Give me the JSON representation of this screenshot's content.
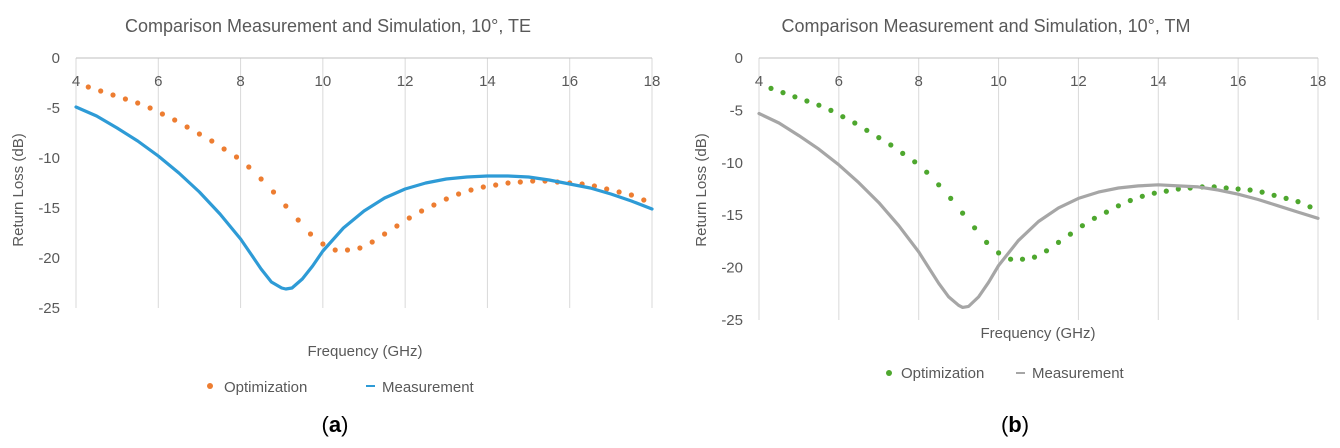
{
  "captions": [
    "a",
    "b"
  ],
  "chart_data": [
    {
      "type": "scatter",
      "title": "Comparison Measurement and Simulation, 10°, TE",
      "xlabel": "Frequency (GHz)",
      "ylabel": "Return Loss (dB)",
      "xlim": [
        4,
        18
      ],
      "ylim": [
        -25,
        0
      ],
      "x_ticks": [
        4,
        6,
        8,
        10,
        12,
        14,
        16,
        18
      ],
      "y_ticks": [
        0,
        -5,
        -10,
        -15,
        -20,
        -25
      ],
      "grid": "vertical",
      "legend_position": "bottom",
      "colors": {
        "Optimization": "#ED7D31",
        "Measurement": "#2E9BD6"
      },
      "series": [
        {
          "name": "Optimization",
          "style": "markers",
          "x": [
            4.3,
            4.6,
            4.9,
            5.2,
            5.5,
            5.8,
            6.1,
            6.4,
            6.7,
            7.0,
            7.3,
            7.6,
            7.9,
            8.2,
            8.5,
            8.8,
            9.1,
            9.4,
            9.7,
            10.0,
            10.3,
            10.6,
            10.9,
            11.2,
            11.5,
            11.8,
            12.1,
            12.4,
            12.7,
            13.0,
            13.3,
            13.6,
            13.9,
            14.2,
            14.5,
            14.8,
            15.1,
            15.4,
            15.7,
            16.0,
            16.3,
            16.6,
            16.9,
            17.2,
            17.5,
            17.8
          ],
          "y": [
            -2.9,
            -3.3,
            -3.7,
            -4.1,
            -4.5,
            -5.0,
            -5.6,
            -6.2,
            -6.9,
            -7.6,
            -8.3,
            -9.1,
            -9.9,
            -10.9,
            -12.1,
            -13.4,
            -14.8,
            -16.2,
            -17.6,
            -18.6,
            -19.2,
            -19.2,
            -19.0,
            -18.4,
            -17.6,
            -16.8,
            -16.0,
            -15.3,
            -14.7,
            -14.1,
            -13.6,
            -13.2,
            -12.9,
            -12.7,
            -12.5,
            -12.4,
            -12.3,
            -12.3,
            -12.4,
            -12.5,
            -12.6,
            -12.8,
            -13.1,
            -13.4,
            -13.7,
            -14.2
          ]
        },
        {
          "name": "Measurement",
          "style": "line",
          "x": [
            4.0,
            4.5,
            5.0,
            5.5,
            6.0,
            6.5,
            7.0,
            7.5,
            8.0,
            8.25,
            8.5,
            8.75,
            9.0,
            9.1,
            9.25,
            9.5,
            9.75,
            10.0,
            10.5,
            11.0,
            11.5,
            12.0,
            12.5,
            13.0,
            13.5,
            14.0,
            14.5,
            15.0,
            15.5,
            16.0,
            16.5,
            17.0,
            17.5,
            18.0
          ],
          "y": [
            -4.9,
            -5.8,
            -7.0,
            -8.3,
            -9.8,
            -11.5,
            -13.4,
            -15.6,
            -18.1,
            -19.6,
            -21.1,
            -22.4,
            -23.0,
            -23.1,
            -23.0,
            -22.1,
            -20.8,
            -19.3,
            -17.0,
            -15.3,
            -14.0,
            -13.1,
            -12.5,
            -12.1,
            -11.9,
            -11.8,
            -11.8,
            -11.9,
            -12.2,
            -12.6,
            -13.0,
            -13.6,
            -14.3,
            -15.1
          ]
        }
      ]
    },
    {
      "type": "scatter",
      "title": "Comparison Measurement and Simulation, 10°, TM",
      "xlabel": "Frequency (GHz)",
      "ylabel": "Return Loss (dB)",
      "xlim": [
        4,
        18
      ],
      "ylim": [
        -25,
        0
      ],
      "x_ticks": [
        4,
        6,
        8,
        10,
        12,
        14,
        16,
        18
      ],
      "y_ticks": [
        0,
        -5,
        -10,
        -15,
        -20,
        -25
      ],
      "grid": "vertical",
      "legend_position": "bottom",
      "colors": {
        "Optimization": "#4EA72E",
        "Measurement": "#A6A6A6"
      },
      "series": [
        {
          "name": "Optimization",
          "style": "markers",
          "x": [
            4.3,
            4.6,
            4.9,
            5.2,
            5.5,
            5.8,
            6.1,
            6.4,
            6.7,
            7.0,
            7.3,
            7.6,
            7.9,
            8.2,
            8.5,
            8.8,
            9.1,
            9.4,
            9.7,
            10.0,
            10.3,
            10.6,
            10.9,
            11.2,
            11.5,
            11.8,
            12.1,
            12.4,
            12.7,
            13.0,
            13.3,
            13.6,
            13.9,
            14.2,
            14.5,
            14.8,
            15.1,
            15.4,
            15.7,
            16.0,
            16.3,
            16.6,
            16.9,
            17.2,
            17.5,
            17.8
          ],
          "y": [
            -2.9,
            -3.3,
            -3.7,
            -4.1,
            -4.5,
            -5.0,
            -5.6,
            -6.2,
            -6.9,
            -7.6,
            -8.3,
            -9.1,
            -9.9,
            -10.9,
            -12.1,
            -13.4,
            -14.8,
            -16.2,
            -17.6,
            -18.6,
            -19.2,
            -19.2,
            -19.0,
            -18.4,
            -17.6,
            -16.8,
            -16.0,
            -15.3,
            -14.7,
            -14.1,
            -13.6,
            -13.2,
            -12.9,
            -12.7,
            -12.5,
            -12.4,
            -12.3,
            -12.3,
            -12.4,
            -12.5,
            -12.6,
            -12.8,
            -13.1,
            -13.4,
            -13.7,
            -14.2
          ]
        },
        {
          "name": "Measurement",
          "style": "line",
          "x": [
            4.0,
            4.5,
            5.0,
            5.5,
            6.0,
            6.5,
            7.0,
            7.5,
            8.0,
            8.25,
            8.5,
            8.75,
            9.0,
            9.1,
            9.25,
            9.5,
            9.75,
            10.0,
            10.5,
            11.0,
            11.5,
            12.0,
            12.5,
            13.0,
            13.5,
            14.0,
            14.5,
            15.0,
            15.5,
            16.0,
            16.5,
            17.0,
            17.5,
            18.0
          ],
          "y": [
            -5.3,
            -6.2,
            -7.4,
            -8.7,
            -10.2,
            -11.9,
            -13.8,
            -16.0,
            -18.5,
            -20.0,
            -21.5,
            -22.8,
            -23.6,
            -23.8,
            -23.7,
            -22.8,
            -21.4,
            -19.8,
            -17.4,
            -15.6,
            -14.3,
            -13.4,
            -12.8,
            -12.4,
            -12.2,
            -12.1,
            -12.2,
            -12.3,
            -12.6,
            -13.0,
            -13.5,
            -14.1,
            -14.7,
            -15.3
          ]
        }
      ]
    }
  ]
}
